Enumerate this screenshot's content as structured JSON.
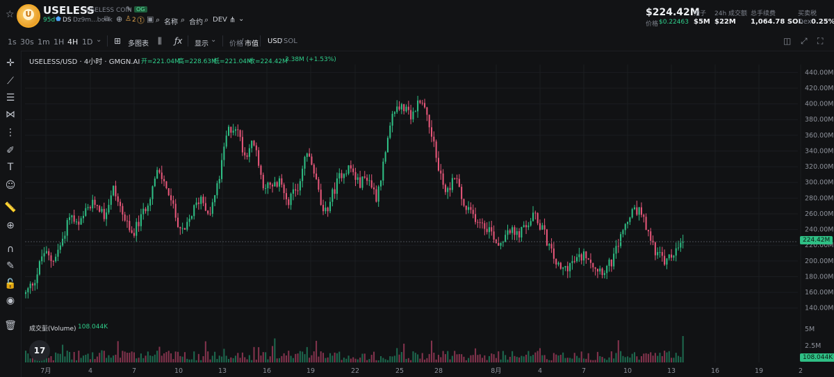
{
  "token": {
    "star_icon": "star-icon",
    "name": "USELESS",
    "fullname": "USELESS COIN",
    "badge": "OG",
    "age": "95d",
    "ds": "DS",
    "address": "Dz9m...bonk",
    "holders": "2",
    "name_link": "名称",
    "contract_link": "合约",
    "dev_link": "DEV"
  },
  "stats": {
    "price": "$224.42M",
    "price_label": "价格",
    "price_value": "$0.22463",
    "pool_label": "池子",
    "pool_value": "$5M",
    "volume_label": "24h 成交额",
    "volume_value": "$22M",
    "fees_label": "总手续费",
    "fees_value": "1,064.78 SOL",
    "tax_label": "买卖税",
    "tax_value_prefix": "Dex",
    "tax_value": "0.25%"
  },
  "toolbar": {
    "timeframes": [
      "1s",
      "30s",
      "1m",
      "1H",
      "4H",
      "1D"
    ],
    "active_timeframe": "4H",
    "multi_chart": "多图表",
    "display": "显示",
    "price_label": "价格",
    "mcap_label": "市值",
    "usd": "USD",
    "sol": "SOL"
  },
  "chart_info": {
    "symbol": "USELESS/USD · 4小时 · GMGN.AI",
    "open": "开=221.04M",
    "high": "高=228.63M",
    "low": "低=221.04M",
    "close": "收=224.42M",
    "change": "3.38M (+1.53%)",
    "volume_label": "成交量(Volume)",
    "volume_value": "108.044K",
    "current_label": "224.42M",
    "volume_current_label": "108.044K"
  },
  "chart_data": {
    "type": "candlestick",
    "y_ticks": [
      "440.00M",
      "420.00M",
      "400.00M",
      "380.00M",
      "360.00M",
      "340.00M",
      "320.00M",
      "300.00M",
      "280.00M",
      "260.00M",
      "240.00M",
      "220.00M",
      "200.00M",
      "180.00M",
      "160.00M",
      "140.00M"
    ],
    "volume_ticks": [
      "5M",
      "2.5M"
    ],
    "x_ticks": [
      "7月",
      "4",
      "7",
      "10",
      "13",
      "16",
      "19",
      "22",
      "25",
      "28",
      "8月",
      "4",
      "7",
      "10",
      "13",
      "16",
      "19",
      "2"
    ],
    "ylim": [
      130,
      450
    ],
    "key_points": [
      [
        0,
        158
      ],
      [
        6,
        180
      ],
      [
        10,
        212
      ],
      [
        15,
        200
      ],
      [
        20,
        220
      ],
      [
        25,
        260
      ],
      [
        30,
        242
      ],
      [
        35,
        265
      ],
      [
        40,
        275
      ],
      [
        45,
        258
      ],
      [
        50,
        292
      ],
      [
        55,
        262
      ],
      [
        60,
        232
      ],
      [
        65,
        250
      ],
      [
        70,
        278
      ],
      [
        75,
        312
      ],
      [
        80,
        298
      ],
      [
        85,
        260
      ],
      [
        90,
        232
      ],
      [
        95,
        262
      ],
      [
        100,
        282
      ],
      [
        105,
        260
      ],
      [
        110,
        300
      ],
      [
        115,
        365
      ],
      [
        120,
        372
      ],
      [
        125,
        335
      ],
      [
        130,
        352
      ],
      [
        135,
        300
      ],
      [
        140,
        292
      ],
      [
        145,
        300
      ],
      [
        150,
        278
      ],
      [
        155,
        290
      ],
      [
        160,
        340
      ],
      [
        165,
        310
      ],
      [
        170,
        255
      ],
      [
        175,
        285
      ],
      [
        180,
        312
      ],
      [
        185,
        320
      ],
      [
        190,
        298
      ],
      [
        195,
        308
      ],
      [
        200,
        282
      ],
      [
        205,
        332
      ],
      [
        210,
        392
      ],
      [
        215,
        398
      ],
      [
        220,
        380
      ],
      [
        225,
        408
      ],
      [
        230,
        380
      ],
      [
        235,
        322
      ],
      [
        240,
        285
      ],
      [
        245,
        312
      ],
      [
        250,
        268
      ],
      [
        255,
        258
      ],
      [
        260,
        250
      ],
      [
        265,
        240
      ],
      [
        270,
        220
      ],
      [
        275,
        242
      ],
      [
        280,
        232
      ],
      [
        285,
        242
      ],
      [
        290,
        258
      ],
      [
        295,
        240
      ],
      [
        300,
        210
      ],
      [
        305,
        187
      ],
      [
        310,
        195
      ],
      [
        315,
        202
      ],
      [
        320,
        210
      ],
      [
        325,
        192
      ],
      [
        330,
        188
      ],
      [
        335,
        200
      ],
      [
        340,
        235
      ],
      [
        345,
        258
      ],
      [
        350,
        265
      ],
      [
        355,
        235
      ],
      [
        360,
        210
      ],
      [
        365,
        198
      ],
      [
        370,
        210
      ],
      [
        375,
        224.42
      ]
    ],
    "last_close": 224.42,
    "last_volume": "108.044K"
  },
  "colors": {
    "up": "#2fbf85",
    "down": "#e8577a",
    "accent": "#2fcf8b",
    "background": "#111214"
  }
}
